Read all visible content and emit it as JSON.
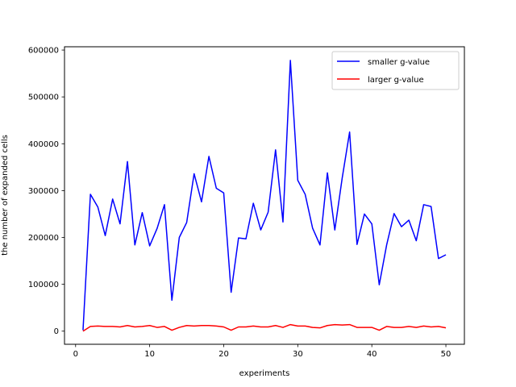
{
  "chart_data": {
    "type": "line",
    "xlabel": "experiments",
    "ylabel": "the number of expanded cells",
    "xlim": [
      -1.5,
      52.5
    ],
    "ylim": [
      -28000,
      607000
    ],
    "xticks": [
      0,
      10,
      20,
      30,
      40,
      50
    ],
    "yticks": [
      0,
      100000,
      200000,
      300000,
      400000,
      500000,
      600000
    ],
    "grid": false,
    "legend_position": "top-right",
    "x": [
      1,
      2,
      3,
      4,
      5,
      6,
      7,
      8,
      9,
      10,
      11,
      12,
      13,
      14,
      15,
      16,
      17,
      18,
      19,
      20,
      21,
      22,
      23,
      24,
      25,
      26,
      27,
      28,
      29,
      30,
      31,
      32,
      33,
      34,
      35,
      36,
      37,
      38,
      39,
      40,
      41,
      42,
      43,
      44,
      45,
      46,
      47,
      48,
      49,
      50
    ],
    "series": [
      {
        "name": "smaller g-value",
        "color": "#0000ff",
        "values": [
          2000,
          292000,
          265000,
          204000,
          282000,
          229000,
          362000,
          184000,
          253000,
          182000,
          219000,
          270000,
          66000,
          200000,
          232000,
          336000,
          276000,
          373000,
          305000,
          295000,
          83000,
          199000,
          197000,
          273000,
          216000,
          254000,
          387000,
          233000,
          578000,
          322000,
          292000,
          220000,
          184000,
          338000,
          216000,
          327000,
          425000,
          185000,
          250000,
          229000,
          99000,
          184000,
          251000,
          223000,
          237000,
          193000,
          270000,
          266000,
          155000,
          163000
        ]
      },
      {
        "name": "larger g-value",
        "color": "#ff0000",
        "values": [
          0,
          10000,
          11000,
          10000,
          10000,
          9000,
          12000,
          9000,
          10000,
          12000,
          8000,
          10000,
          2000,
          8000,
          12000,
          11000,
          12000,
          12000,
          11000,
          9000,
          2000,
          9000,
          9000,
          11000,
          9000,
          9000,
          12000,
          8000,
          14000,
          11000,
          11000,
          8000,
          7000,
          12000,
          14000,
          13000,
          14000,
          8000,
          8000,
          8000,
          2000,
          10000,
          8000,
          8000,
          10000,
          8000,
          11000,
          9000,
          10000,
          7000
        ]
      }
    ]
  }
}
